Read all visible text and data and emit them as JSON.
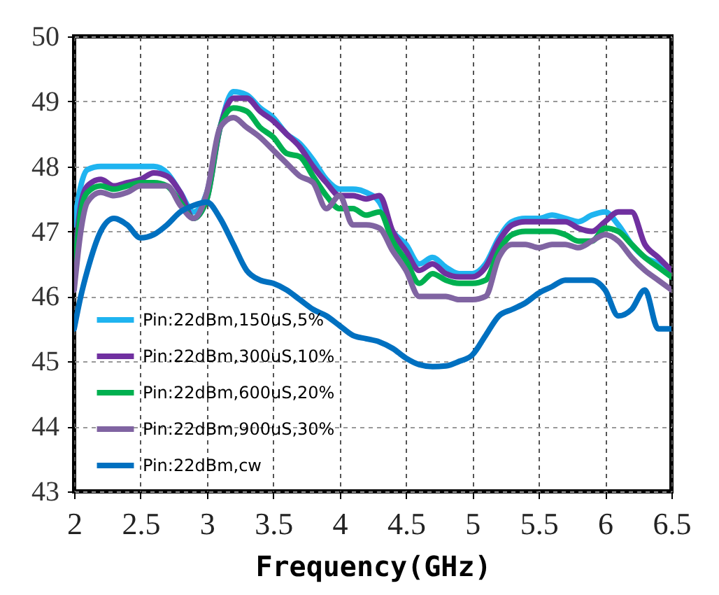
{
  "chart_data": {
    "type": "line",
    "xlabel": "Frequency(GHz)",
    "x": [
      2.0,
      2.05,
      2.1,
      2.2,
      2.3,
      2.4,
      2.5,
      2.6,
      2.7,
      2.8,
      2.9,
      3.0,
      3.1,
      3.2,
      3.3,
      3.4,
      3.5,
      3.6,
      3.7,
      3.8,
      3.9,
      4.0,
      4.1,
      4.2,
      4.3,
      4.4,
      4.5,
      4.6,
      4.7,
      4.8,
      4.9,
      5.0,
      5.1,
      5.2,
      5.3,
      5.4,
      5.5,
      5.6,
      5.7,
      5.8,
      5.9,
      6.0,
      6.1,
      6.2,
      6.3,
      6.4,
      6.5
    ],
    "series": [
      {
        "name": "Pin:22dBm,150uS,5%",
        "color": "#1fb4f0",
        "values": [
          47.1,
          47.7,
          47.95,
          48.0,
          48.0,
          48.0,
          48.0,
          48.0,
          47.9,
          47.6,
          47.3,
          47.6,
          48.6,
          49.15,
          49.1,
          48.9,
          48.75,
          48.5,
          48.35,
          48.1,
          47.8,
          47.65,
          47.65,
          47.6,
          47.45,
          47.0,
          46.8,
          46.5,
          46.6,
          46.45,
          46.35,
          46.35,
          46.5,
          46.9,
          47.15,
          47.2,
          47.2,
          47.25,
          47.2,
          47.15,
          47.25,
          47.3,
          47.1,
          46.8,
          46.6,
          46.5,
          46.3
        ]
      },
      {
        "name": "Pin:22dBm,300uS,10%",
        "color": "#7030a0",
        "values": [
          46.5,
          47.4,
          47.7,
          47.8,
          47.7,
          47.75,
          47.8,
          47.9,
          47.85,
          47.6,
          47.2,
          47.5,
          48.6,
          49.05,
          49.05,
          48.85,
          48.7,
          48.5,
          48.3,
          48.0,
          47.75,
          47.55,
          47.55,
          47.5,
          47.55,
          47.0,
          46.7,
          46.4,
          46.5,
          46.35,
          46.3,
          46.3,
          46.45,
          46.85,
          47.1,
          47.15,
          47.15,
          47.15,
          47.15,
          47.05,
          47.0,
          47.15,
          47.3,
          47.3,
          46.8,
          46.6,
          46.4
        ]
      },
      {
        "name": "Pin:22dBm,600uS,20%",
        "color": "#00b050",
        "values": [
          46.3,
          47.3,
          47.6,
          47.7,
          47.65,
          47.7,
          47.75,
          47.75,
          47.7,
          47.45,
          47.2,
          47.5,
          48.6,
          48.9,
          48.85,
          48.6,
          48.45,
          48.2,
          48.15,
          47.85,
          47.55,
          47.35,
          47.35,
          47.25,
          47.3,
          46.85,
          46.55,
          46.2,
          46.35,
          46.25,
          46.2,
          46.2,
          46.25,
          46.7,
          46.95,
          47.0,
          47.0,
          47.0,
          46.95,
          46.85,
          46.85,
          47.05,
          47.0,
          46.8,
          46.6,
          46.45,
          46.3
        ]
      },
      {
        "name": "Pin:22dBm,900uS,30%",
        "color": "#8064a2",
        "values": [
          46.1,
          47.0,
          47.45,
          47.6,
          47.55,
          47.6,
          47.7,
          47.7,
          47.7,
          47.4,
          47.2,
          47.6,
          48.6,
          48.75,
          48.6,
          48.45,
          48.25,
          48.05,
          47.85,
          47.75,
          47.35,
          47.55,
          47.1,
          47.1,
          47.05,
          46.7,
          46.4,
          46.0,
          46.0,
          46.0,
          45.95,
          45.95,
          46.0,
          46.6,
          46.8,
          46.8,
          46.75,
          46.8,
          46.8,
          46.75,
          46.85,
          46.95,
          46.85,
          46.6,
          46.4,
          46.25,
          46.1
        ]
      },
      {
        "name": "Pin:22dBm,cw",
        "color": "#0070c0",
        "values": [
          45.5,
          46.0,
          46.4,
          47.0,
          47.2,
          47.1,
          46.9,
          46.95,
          47.1,
          47.3,
          47.4,
          47.45,
          47.2,
          46.8,
          46.4,
          46.25,
          46.2,
          46.1,
          45.95,
          45.8,
          45.7,
          45.55,
          45.4,
          45.35,
          45.3,
          45.2,
          45.05,
          44.95,
          44.92,
          44.93,
          45.0,
          45.1,
          45.4,
          45.7,
          45.8,
          45.9,
          46.05,
          46.15,
          46.25,
          46.25,
          46.25,
          46.1,
          45.7,
          45.8,
          46.1,
          45.5,
          45.5
        ]
      }
    ],
    "xlim": [
      2,
      6.5
    ],
    "xticks": [
      2,
      2.5,
      3,
      3.5,
      4,
      4.5,
      5,
      5.5,
      6,
      6.5
    ],
    "ylim": [
      43,
      50
    ],
    "yticks": [
      43,
      44,
      45,
      46,
      47,
      48,
      49,
      50
    ],
    "grid": true,
    "legend": "bottom left",
    "line_style": "solid",
    "marker": "none"
  }
}
